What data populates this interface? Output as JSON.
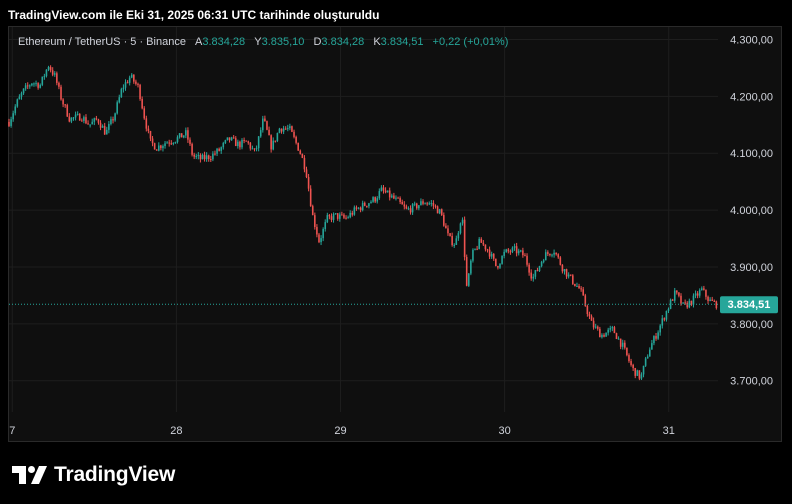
{
  "header": {
    "title": "TradingView.com ile Eki 31, 2025 06:31 UTC tarihinde oluşturuldu"
  },
  "legend": {
    "symbol": "Ethereum / TetherUS · 5 · Binance",
    "open_label": "A",
    "open_value": "3.834,28",
    "high_label": "Y",
    "high_value": "3.835,10",
    "low_label": "D",
    "low_value": "3.834,28",
    "close_label": "K",
    "close_value": "3.834,51",
    "change": "+0,22 (+0,01%)"
  },
  "colors": {
    "up": "#26a69a",
    "down": "#ef5350",
    "last_price_bg": "#26a69a",
    "background": "#0f0f0f",
    "grid": "#1e1e1e"
  },
  "footer": {
    "brand": "TradingView",
    "logo_icon": "tradingview-logo-icon"
  },
  "chart_data": {
    "type": "candlestick",
    "series_label": "Ethereum / TetherUS · 5 · Binance",
    "interval_minutes": 5,
    "x_ticks": [
      {
        "label": "7",
        "day": 27
      },
      {
        "label": "28",
        "day": 28
      },
      {
        "label": "29",
        "day": 29
      },
      {
        "label": "30",
        "day": 30
      },
      {
        "label": "31",
        "day": 31
      }
    ],
    "x_range_days": [
      26.98,
      31.3
    ],
    "y_ticks": [
      {
        "value": 4300,
        "label": "4.300,00"
      },
      {
        "value": 4200,
        "label": "4.200,00"
      },
      {
        "value": 4100,
        "label": "4.100,00"
      },
      {
        "value": 4000,
        "label": "4.000,00"
      },
      {
        "value": 3900,
        "label": "3.900,00"
      },
      {
        "value": 3800,
        "label": "3.800,00"
      },
      {
        "value": 3700,
        "label": "3.700,00"
      }
    ],
    "ylim": [
      3645,
      4322
    ],
    "last_price": {
      "value": 3834.51,
      "label": "3.834,51"
    },
    "price_path": [
      [
        26.98,
        4155
      ],
      [
        27.03,
        4190
      ],
      [
        27.07,
        4210
      ],
      [
        27.12,
        4225
      ],
      [
        27.17,
        4220
      ],
      [
        27.22,
        4255
      ],
      [
        27.26,
        4235
      ],
      [
        27.3,
        4195
      ],
      [
        27.35,
        4160
      ],
      [
        27.42,
        4165
      ],
      [
        27.47,
        4150
      ],
      [
        27.52,
        4160
      ],
      [
        27.57,
        4135
      ],
      [
        27.62,
        4165
      ],
      [
        27.67,
        4215
      ],
      [
        27.72,
        4235
      ],
      [
        27.77,
        4215
      ],
      [
        27.8,
        4170
      ],
      [
        27.84,
        4120
      ],
      [
        27.88,
        4110
      ],
      [
        27.94,
        4120
      ],
      [
        28.0,
        4125
      ],
      [
        28.06,
        4135
      ],
      [
        28.1,
        4095
      ],
      [
        28.15,
        4090
      ],
      [
        28.21,
        4095
      ],
      [
        28.26,
        4105
      ],
      [
        28.32,
        4125
      ],
      [
        28.38,
        4115
      ],
      [
        28.43,
        4120
      ],
      [
        28.48,
        4100
      ],
      [
        28.53,
        4160
      ],
      [
        28.58,
        4110
      ],
      [
        28.63,
        4145
      ],
      [
        28.69,
        4142
      ],
      [
        28.75,
        4105
      ],
      [
        28.79,
        4070
      ],
      [
        28.83,
        3990
      ],
      [
        28.87,
        3945
      ],
      [
        28.92,
        3985
      ],
      [
        28.97,
        3990
      ],
      [
        29.03,
        3985
      ],
      [
        29.09,
        4000
      ],
      [
        29.15,
        4010
      ],
      [
        29.21,
        4020
      ],
      [
        29.25,
        4035
      ],
      [
        29.3,
        4025
      ],
      [
        29.35,
        4015
      ],
      [
        29.4,
        4000
      ],
      [
        29.45,
        4005
      ],
      [
        29.51,
        4015
      ],
      [
        29.56,
        4010
      ],
      [
        29.61,
        3995
      ],
      [
        29.66,
        3950
      ],
      [
        29.7,
        3940
      ],
      [
        29.74,
        3995
      ],
      [
        29.77,
        3860
      ],
      [
        29.8,
        3920
      ],
      [
        29.85,
        3945
      ],
      [
        29.9,
        3930
      ],
      [
        29.95,
        3900
      ],
      [
        30.0,
        3925
      ],
      [
        30.06,
        3930
      ],
      [
        30.12,
        3920
      ],
      [
        30.17,
        3880
      ],
      [
        30.2,
        3895
      ],
      [
        30.24,
        3920
      ],
      [
        30.3,
        3930
      ],
      [
        30.35,
        3900
      ],
      [
        30.4,
        3880
      ],
      [
        30.46,
        3860
      ],
      [
        30.53,
        3800
      ],
      [
        30.59,
        3780
      ],
      [
        30.66,
        3790
      ],
      [
        30.72,
        3760
      ],
      [
        30.78,
        3720
      ],
      [
        30.83,
        3705
      ],
      [
        30.88,
        3755
      ],
      [
        30.93,
        3785
      ],
      [
        30.99,
        3825
      ],
      [
        31.04,
        3855
      ],
      [
        31.09,
        3830
      ],
      [
        31.14,
        3840
      ],
      [
        31.2,
        3860
      ],
      [
        31.25,
        3840
      ],
      [
        31.29,
        3834.5
      ]
    ]
  }
}
